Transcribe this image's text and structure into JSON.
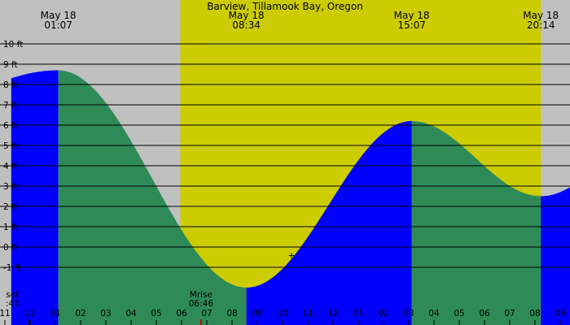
{
  "chart_data": {
    "type": "area",
    "title": "Barview, Tillamook Bay, Oregon",
    "xlabel": "",
    "ylabel": "",
    "x_unit": "hour of day (May 18)",
    "xlim": [
      -0.75,
      22.2
    ],
    "ylim": [
      -2.5,
      11.0
    ],
    "grid": true,
    "daylight": {
      "start": 5.95,
      "end": 20.23
    },
    "y_ticks": [
      {
        "value": 10,
        "label": "10 ft"
      },
      {
        "value": 9,
        "label": "9 ft"
      },
      {
        "value": 8,
        "label": "8 ft"
      },
      {
        "value": 7,
        "label": "7 ft"
      },
      {
        "value": 6,
        "label": "6 ft"
      },
      {
        "value": 5,
        "label": "5 ft"
      },
      {
        "value": 4,
        "label": "4 ft"
      },
      {
        "value": 3,
        "label": "3 ft"
      },
      {
        "value": 2,
        "label": "2 ft"
      },
      {
        "value": 1,
        "label": "1 ft"
      },
      {
        "value": 0,
        "label": "0 ft"
      },
      {
        "value": -1,
        "label": "-1 ft"
      }
    ],
    "x_ticks": [
      {
        "value": -1,
        "label": "11"
      },
      {
        "value": 0,
        "label": "12"
      },
      {
        "value": 1,
        "label": "01"
      },
      {
        "value": 2,
        "label": "02"
      },
      {
        "value": 3,
        "label": "03"
      },
      {
        "value": 4,
        "label": "04"
      },
      {
        "value": 5,
        "label": "05"
      },
      {
        "value": 6,
        "label": "06"
      },
      {
        "value": 7,
        "label": "07"
      },
      {
        "value": 8,
        "label": "08"
      },
      {
        "value": 9,
        "label": "09"
      },
      {
        "value": 10,
        "label": "10"
      },
      {
        "value": 11,
        "label": "11"
      },
      {
        "value": 12,
        "label": "12"
      },
      {
        "value": 13,
        "label": "01"
      },
      {
        "value": 14,
        "label": "02"
      },
      {
        "value": 15,
        "label": "03"
      },
      {
        "value": 16,
        "label": "04"
      },
      {
        "value": 17,
        "label": "05"
      },
      {
        "value": 18,
        "label": "06"
      },
      {
        "value": 19,
        "label": "07"
      },
      {
        "value": 20,
        "label": "08"
      },
      {
        "value": 21,
        "label": "09"
      }
    ],
    "extremes": [
      {
        "time": 1.117,
        "height": 8.7,
        "date": "May 18",
        "time_label": "01:07"
      },
      {
        "time": 8.567,
        "height": -2.0,
        "date": "May 18",
        "time_label": "08:34"
      },
      {
        "time": 15.117,
        "height": 6.2,
        "date": "May 18",
        "time_label": "15:07"
      },
      {
        "time": 20.233,
        "height": 2.5,
        "date": "May 18",
        "time_label": "20:14"
      }
    ],
    "rising_color": "#0000ff",
    "falling_color": "#2e8b57",
    "day_color": "#cccc00",
    "night_color": "#c0c0c0",
    "annotations": [
      {
        "text": "Moonset",
        "label": "set",
        "time_label": ":43",
        "time": -0.7
      },
      {
        "text": "Moonrise",
        "label": "Mrise",
        "time_label": "06:46",
        "time": 6.77
      }
    ]
  }
}
